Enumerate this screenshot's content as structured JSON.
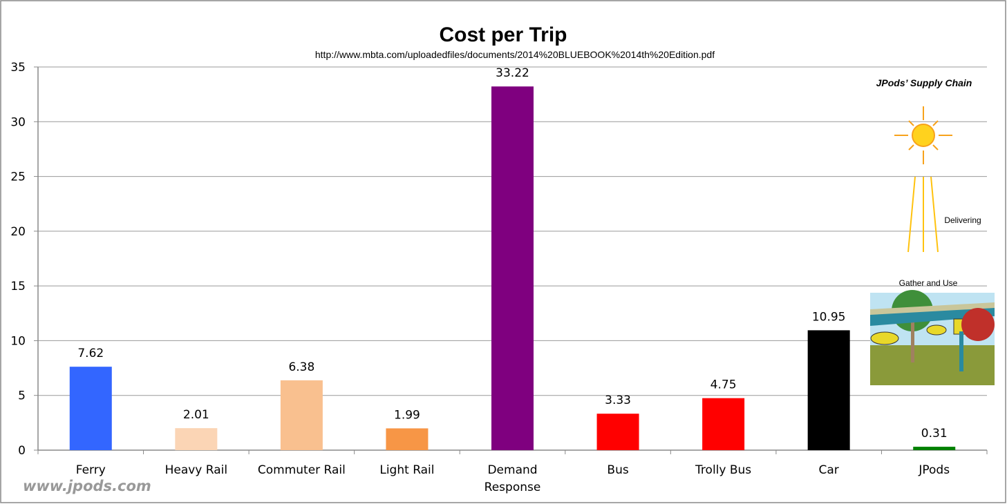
{
  "chart_data": {
    "type": "bar",
    "title": "Cost per Trip",
    "subtitle": "http://www.mbta.com/uploadedfiles/documents/2014%20BLUEBOOK%2014th%20Edition.pdf",
    "xlabel": "",
    "ylabel": "",
    "ylim": [
      0,
      35
    ],
    "yticks": [
      0,
      5,
      10,
      15,
      20,
      25,
      30,
      35
    ],
    "grid": true,
    "categories": [
      [
        "Ferry"
      ],
      [
        "Heavy Rail"
      ],
      [
        "Commuter Rail"
      ],
      [
        "Light Rail"
      ],
      [
        "Demand",
        "Response"
      ],
      [
        "Bus"
      ],
      [
        "Trolly Bus"
      ],
      [
        "Car"
      ],
      [
        "JPods"
      ]
    ],
    "values": [
      7.62,
      2.01,
      6.38,
      1.99,
      33.22,
      3.33,
      4.75,
      10.95,
      0.31
    ],
    "data_labels": [
      "7.62",
      "2.01",
      "6.38",
      "1.99",
      "33.22",
      "3.33",
      "4.75",
      "10.95",
      "0.31"
    ],
    "colors": [
      "#3366ff",
      "#fbd5b5",
      "#f9c08f",
      "#f79646",
      "#7f007f",
      "#ff0000",
      "#ff0000",
      "#000000",
      "#008000"
    ]
  },
  "watermark": "www.jpods.com",
  "inset": {
    "title": "JPods’ Supply Chain",
    "delivering": "Delivering",
    "gather": "Gather and Use"
  }
}
